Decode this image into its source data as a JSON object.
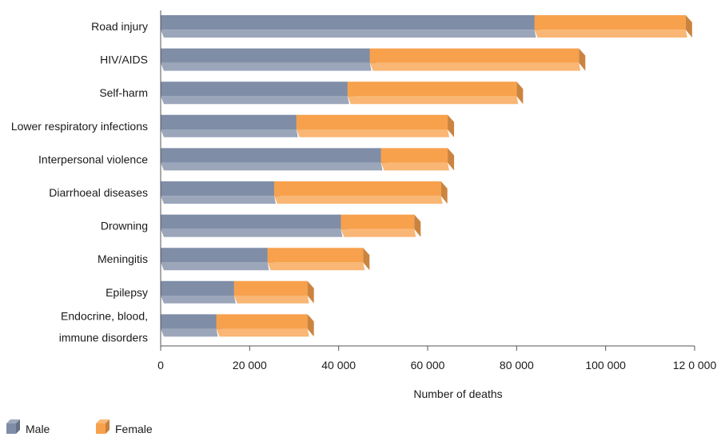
{
  "chart_data": {
    "type": "bar",
    "orientation": "horizontal",
    "stacked": true,
    "categories": [
      "Road injury",
      "HIV/AIDS",
      "Self-harm",
      "Lower respiratory infections",
      "Interpersonal violence",
      "Diarrhoeal diseases",
      "Drowning",
      "Meningitis",
      "Epilepsy",
      "Endocrine, blood,\nimmune disorders"
    ],
    "series": [
      {
        "name": "Male",
        "color": "#7f8da7",
        "values": [
          84000,
          47000,
          42000,
          30500,
          49500,
          25500,
          40500,
          24000,
          16500,
          12500
        ]
      },
      {
        "name": "Female",
        "color": "#f7a14d",
        "values": [
          34000,
          47000,
          38000,
          34000,
          15000,
          37500,
          16500,
          21500,
          16500,
          20500
        ]
      }
    ],
    "title": "",
    "xlabel": "Number of deaths",
    "ylabel": "",
    "xlim": [
      0,
      120000
    ],
    "xticks": [
      0,
      20000,
      40000,
      60000,
      80000,
      100000,
      120000
    ],
    "xtick_labels": [
      "0",
      "20 000",
      "40 000",
      "60 000",
      "80 000",
      "100 000",
      "12 0 000"
    ],
    "grid": false,
    "legend": "bottom-left"
  }
}
